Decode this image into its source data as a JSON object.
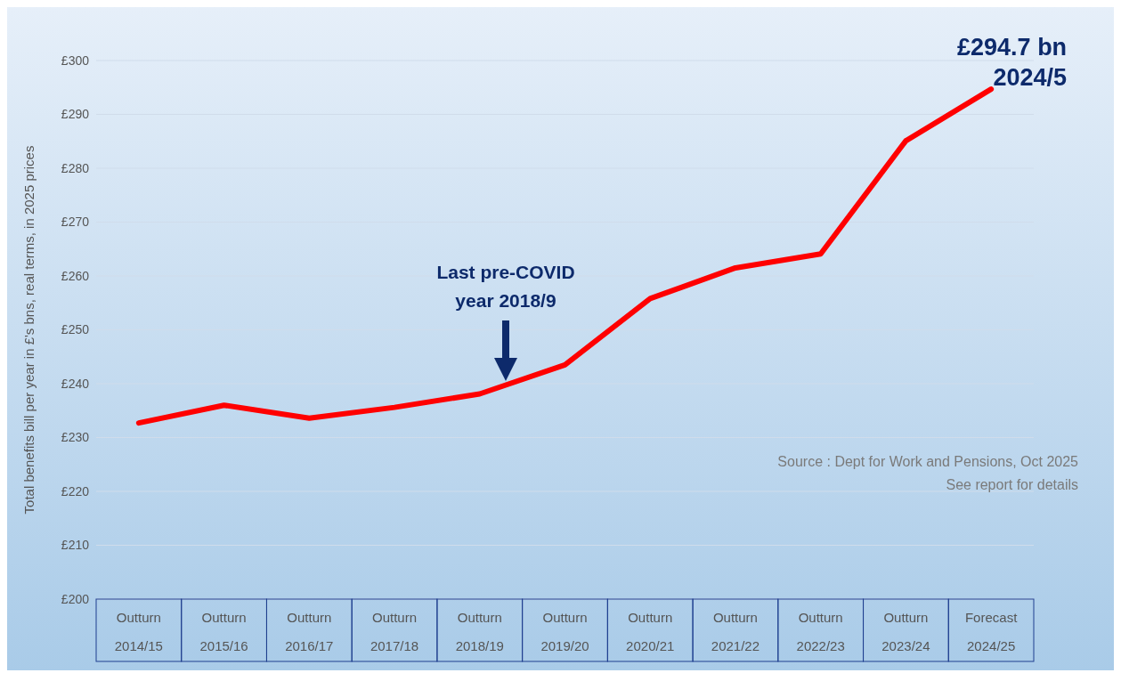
{
  "chart_data": {
    "type": "line",
    "ylabel": "Total benefits bill per year in £'s bns, real terms, in 2025 prices",
    "categories": [
      "Outturn 2014/15",
      "Outturn 2015/16",
      "Outturn 2016/17",
      "Outturn 2017/18",
      "Outturn 2018/19",
      "Outturn 2019/20",
      "Outturn 2020/21",
      "Outturn 2021/22",
      "Outturn 2022/23",
      "Outturn 2023/24",
      "Forecast 2024/25"
    ],
    "series": [
      {
        "color": "#ff0000",
        "values": [
          232.7,
          236.0,
          233.6,
          235.6,
          238.1,
          243.5,
          255.8,
          261.5,
          264.1,
          285.1,
          294.7
        ]
      }
    ],
    "ylim": [
      200,
      300
    ],
    "yticks": [
      {
        "value": 200,
        "label": "£200"
      },
      {
        "value": 210,
        "label": "£210"
      },
      {
        "value": 220,
        "label": "£220"
      },
      {
        "value": 230,
        "label": "£230"
      },
      {
        "value": 240,
        "label": "£240"
      },
      {
        "value": 250,
        "label": "£250"
      },
      {
        "value": 260,
        "label": "£260"
      },
      {
        "value": 270,
        "label": "£270"
      },
      {
        "value": 280,
        "label": "£280"
      },
      {
        "value": 290,
        "label": "£290"
      },
      {
        "value": 300,
        "label": "£300"
      }
    ],
    "grid": "y",
    "marker": "none",
    "line_style": "solid",
    "legend": false,
    "annotations": [
      {
        "text": "£294.7 bn\n2024/5",
        "x": "Forecast 2024/25",
        "y": 294.7
      },
      "Last pre-COVID\nyear 2018/9",
      "Source : Dept for Work and Pensions, Oct 2025",
      "See report for details"
    ]
  }
}
